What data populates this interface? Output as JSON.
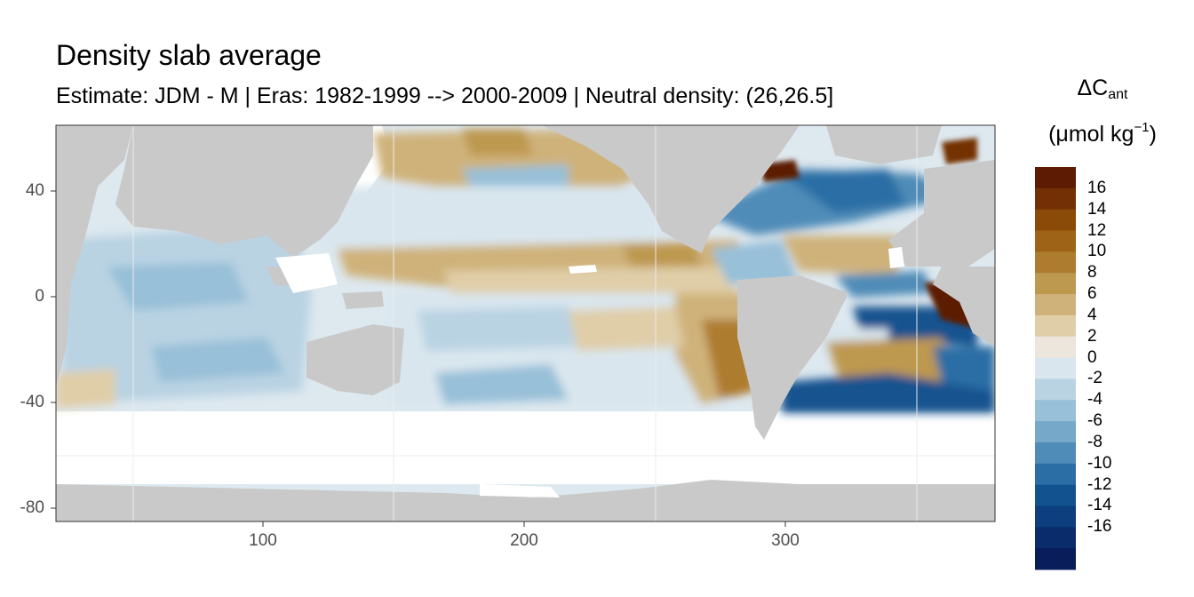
{
  "title": "Density slab average",
  "subtitle": "Estimate: JDM - M | Eras: 1982-1999 --> 2000-2009 | Neutral density: (26,26.5]",
  "legend": {
    "symbol": "ΔC",
    "symbol_sub": "ant",
    "unit_prefix": "(μmol kg",
    "unit_sup": "−1",
    "unit_suffix": ")",
    "labels": [
      "16",
      "14",
      "12",
      "10",
      "8",
      "6",
      "4",
      "2",
      "0",
      "-2",
      "-4",
      "-6",
      "-8",
      "-10",
      "-12",
      "-14",
      "-16"
    ],
    "colors": [
      "#5c1b02",
      "#733004",
      "#8a4a08",
      "#9e6316",
      "#ad7c2e",
      "#bd984f",
      "#cfb27a",
      "#e0cea8",
      "#ece6dc",
      "#d9e6ee",
      "#b9d3e3",
      "#98c0d8",
      "#76a8c9",
      "#4f8cb8",
      "#2b6ea5",
      "#12528f",
      "#0d3e7d",
      "#0a2c6a",
      "#081d59"
    ]
  },
  "axes": {
    "y_ticks": [
      "40",
      "0",
      "-40",
      "-80"
    ],
    "x_ticks": [
      "100",
      "200",
      "300"
    ],
    "lon_range": [
      20,
      380
    ],
    "lat_range": [
      -85,
      65
    ]
  },
  "colors": {
    "land": "#c9c9c9",
    "missing": "#ffffff",
    "panel_border": "#333333",
    "grid": "#ebebeb"
  }
}
